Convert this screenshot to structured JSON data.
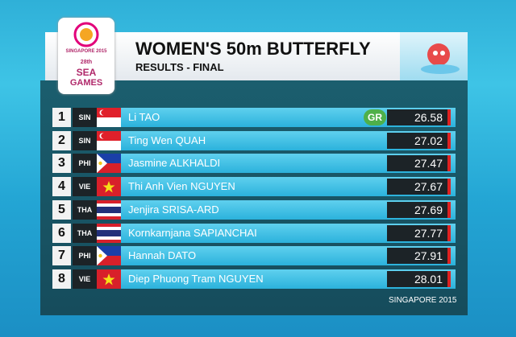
{
  "header": {
    "title": "WOMEN'S 50m BUTTERFLY",
    "subtitle": "RESULTS - FINAL"
  },
  "logo": {
    "city": "SINGAPORE 2015",
    "edition": "28th",
    "name": "SEA",
    "games": "GAMES"
  },
  "results": [
    {
      "rank": "1",
      "country": "SIN",
      "name": "Li TAO",
      "time": "26.58",
      "record": "GR"
    },
    {
      "rank": "2",
      "country": "SIN",
      "name": "Ting Wen QUAH",
      "time": "27.02"
    },
    {
      "rank": "3",
      "country": "PHI",
      "name": "Jasmine ALKHALDI",
      "time": "27.47"
    },
    {
      "rank": "4",
      "country": "VIE",
      "name": "Thi Anh Vien NGUYEN",
      "time": "27.67"
    },
    {
      "rank": "5",
      "country": "THA",
      "name": "Jenjira SRISA-ARD",
      "time": "27.69"
    },
    {
      "rank": "6",
      "country": "THA",
      "name": "Kornkarnjana SAPIANCHAI",
      "time": "27.77"
    },
    {
      "rank": "7",
      "country": "PHI",
      "name": "Hannah DATO",
      "time": "27.91"
    },
    {
      "rank": "8",
      "country": "VIE",
      "name": "Diep Phuong Tram NGUYEN",
      "time": "28.01"
    }
  ],
  "footer": "SINGAPORE 2015"
}
